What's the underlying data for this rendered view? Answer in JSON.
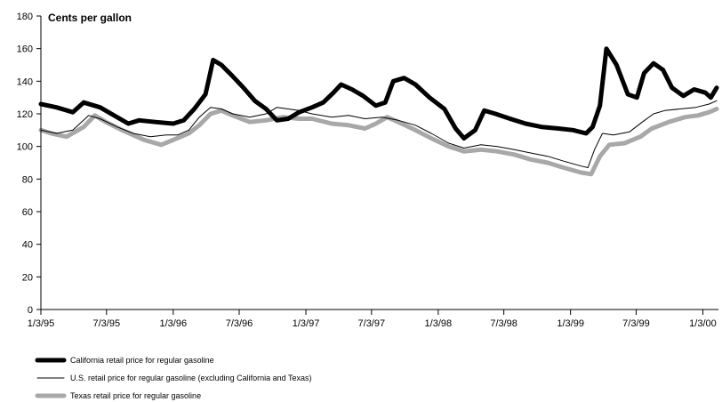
{
  "chart_data": {
    "type": "line",
    "ylabel": "Cents per gallon",
    "ylim": [
      0,
      180
    ],
    "yticks": [
      0,
      20,
      40,
      60,
      80,
      100,
      120,
      140,
      160,
      180
    ],
    "xlim": [
      "1995-01-03",
      "2000-02-15"
    ],
    "xticks": [
      {
        "date": "1995-01-03",
        "label": "1/3/95"
      },
      {
        "date": "1995-07-03",
        "label": "7/3/95"
      },
      {
        "date": "1996-01-03",
        "label": "1/3/96"
      },
      {
        "date": "1996-07-03",
        "label": "7/3/96"
      },
      {
        "date": "1997-01-03",
        "label": "1/3/97"
      },
      {
        "date": "1997-07-03",
        "label": "7/3/97"
      },
      {
        "date": "1998-01-03",
        "label": "1/3/98"
      },
      {
        "date": "1998-07-03",
        "label": "7/3/98"
      },
      {
        "date": "1999-01-03",
        "label": "1/3/99"
      },
      {
        "date": "1999-07-03",
        "label": "7/3/99"
      },
      {
        "date": "2000-01-03",
        "label": "1/3/00"
      }
    ],
    "legend_position": "bottom-left",
    "series": [
      {
        "name": "California retail price for regular gasoline",
        "color": "#000000",
        "style": "thick",
        "points": [
          [
            "1995-01-03",
            126
          ],
          [
            "1995-02-15",
            124
          ],
          [
            "1995-04-01",
            121
          ],
          [
            "1995-05-01",
            127
          ],
          [
            "1995-06-15",
            124
          ],
          [
            "1995-08-01",
            118
          ],
          [
            "1995-09-01",
            114
          ],
          [
            "1995-10-01",
            116
          ],
          [
            "1995-11-15",
            115
          ],
          [
            "1996-01-03",
            114
          ],
          [
            "1996-02-01",
            116
          ],
          [
            "1996-03-01",
            123
          ],
          [
            "1996-04-01",
            132
          ],
          [
            "1996-04-22",
            153
          ],
          [
            "1996-05-15",
            150
          ],
          [
            "1996-06-15",
            143
          ],
          [
            "1996-07-15",
            136
          ],
          [
            "1996-08-15",
            128
          ],
          [
            "1996-09-15",
            123
          ],
          [
            "1996-10-15",
            116
          ],
          [
            "1996-11-15",
            117
          ],
          [
            "1996-12-15",
            121
          ],
          [
            "1997-01-20",
            124
          ],
          [
            "1997-02-20",
            127
          ],
          [
            "1997-03-20",
            133
          ],
          [
            "1997-04-10",
            138
          ],
          [
            "1997-05-10",
            135
          ],
          [
            "1997-06-10",
            131
          ],
          [
            "1997-07-15",
            125
          ],
          [
            "1997-08-10",
            127
          ],
          [
            "1997-09-01",
            140
          ],
          [
            "1997-10-01",
            142
          ],
          [
            "1997-11-01",
            138
          ],
          [
            "1997-12-10",
            130
          ],
          [
            "1998-01-20",
            123
          ],
          [
            "1998-02-20",
            111
          ],
          [
            "1998-03-15",
            105
          ],
          [
            "1998-04-15",
            110
          ],
          [
            "1998-05-10",
            122
          ],
          [
            "1998-06-10",
            120
          ],
          [
            "1998-07-20",
            117
          ],
          [
            "1998-09-01",
            114
          ],
          [
            "1998-10-15",
            112
          ],
          [
            "1998-12-01",
            111
          ],
          [
            "1999-01-10",
            110
          ],
          [
            "1999-02-15",
            108
          ],
          [
            "1999-03-05",
            112
          ],
          [
            "1999-03-25",
            125
          ],
          [
            "1999-04-12",
            160
          ],
          [
            "1999-05-10",
            150
          ],
          [
            "1999-06-10",
            132
          ],
          [
            "1999-07-05",
            130
          ],
          [
            "1999-07-25",
            145
          ],
          [
            "1999-08-20",
            151
          ],
          [
            "1999-09-15",
            147
          ],
          [
            "1999-10-10",
            136
          ],
          [
            "1999-11-10",
            131
          ],
          [
            "1999-12-10",
            135
          ],
          [
            "2000-01-10",
            133
          ],
          [
            "2000-01-25",
            130
          ],
          [
            "2000-02-10",
            136
          ]
        ]
      },
      {
        "name": "U.S. retail price for regular gasoline (excluding California and Texas)",
        "color": "#000000",
        "style": "thin",
        "points": [
          [
            "1995-01-03",
            110
          ],
          [
            "1995-02-15",
            108
          ],
          [
            "1995-04-01",
            110
          ],
          [
            "1995-05-15",
            119
          ],
          [
            "1995-06-15",
            117
          ],
          [
            "1995-08-01",
            112
          ],
          [
            "1995-09-15",
            108
          ],
          [
            "1995-11-01",
            106
          ],
          [
            "1995-12-15",
            107
          ],
          [
            "1996-01-15",
            107
          ],
          [
            "1996-02-15",
            110
          ],
          [
            "1996-03-15",
            118
          ],
          [
            "1996-04-15",
            124
          ],
          [
            "1996-05-15",
            123
          ],
          [
            "1996-06-15",
            120
          ],
          [
            "1996-08-01",
            118
          ],
          [
            "1996-09-15",
            120
          ],
          [
            "1996-10-15",
            124
          ],
          [
            "1996-11-15",
            123
          ],
          [
            "1996-12-15",
            122
          ],
          [
            "1997-01-20",
            120
          ],
          [
            "1997-03-15",
            118
          ],
          [
            "1997-05-01",
            119
          ],
          [
            "1997-06-15",
            117
          ],
          [
            "1997-08-01",
            118
          ],
          [
            "1997-09-15",
            116
          ],
          [
            "1997-11-01",
            113
          ],
          [
            "1997-12-15",
            108
          ],
          [
            "1998-02-01",
            102
          ],
          [
            "1998-03-15",
            99
          ],
          [
            "1998-05-01",
            101
          ],
          [
            "1998-06-15",
            100
          ],
          [
            "1998-08-01",
            98
          ],
          [
            "1998-09-15",
            96
          ],
          [
            "1998-11-01",
            94
          ],
          [
            "1998-12-15",
            91
          ],
          [
            "1999-02-01",
            88
          ],
          [
            "1999-02-20",
            87
          ],
          [
            "1999-03-10",
            98
          ],
          [
            "1999-04-01",
            108
          ],
          [
            "1999-05-01",
            107
          ],
          [
            "1999-06-15",
            109
          ],
          [
            "1999-07-20",
            115
          ],
          [
            "1999-08-20",
            120
          ],
          [
            "1999-09-20",
            122
          ],
          [
            "1999-11-01",
            123
          ],
          [
            "1999-12-15",
            124
          ],
          [
            "2000-01-20",
            126
          ],
          [
            "2000-02-10",
            128
          ]
        ]
      },
      {
        "name": "Texas retail price for regular gasoline",
        "color": "#a8a8a8",
        "style": "thick",
        "points": [
          [
            "1995-01-03",
            110
          ],
          [
            "1995-02-01",
            108
          ],
          [
            "1995-03-15",
            106
          ],
          [
            "1995-05-01",
            112
          ],
          [
            "1995-06-01",
            119
          ],
          [
            "1995-07-01",
            115
          ],
          [
            "1995-08-15",
            110
          ],
          [
            "1995-10-15",
            104
          ],
          [
            "1995-12-01",
            101
          ],
          [
            "1996-01-03",
            104
          ],
          [
            "1996-02-15",
            108
          ],
          [
            "1996-03-15",
            113
          ],
          [
            "1996-04-15",
            120
          ],
          [
            "1996-05-15",
            122
          ],
          [
            "1996-06-15",
            119
          ],
          [
            "1996-08-01",
            115
          ],
          [
            "1996-09-15",
            116
          ],
          [
            "1996-11-01",
            118
          ],
          [
            "1996-12-15",
            117
          ],
          [
            "1997-01-20",
            117
          ],
          [
            "1997-03-15",
            114
          ],
          [
            "1997-05-01",
            113
          ],
          [
            "1997-06-15",
            111
          ],
          [
            "1997-07-15",
            114
          ],
          [
            "1997-08-15",
            118
          ],
          [
            "1997-09-15",
            115
          ],
          [
            "1997-11-01",
            110
          ],
          [
            "1997-12-15",
            105
          ],
          [
            "1998-02-01",
            100
          ],
          [
            "1998-03-15",
            97
          ],
          [
            "1998-05-01",
            98
          ],
          [
            "1998-06-15",
            97
          ],
          [
            "1998-08-01",
            95
          ],
          [
            "1998-09-15",
            92
          ],
          [
            "1998-11-01",
            90
          ],
          [
            "1998-12-15",
            87
          ],
          [
            "1999-02-01",
            84
          ],
          [
            "1999-03-01",
            83
          ],
          [
            "1999-03-25",
            94
          ],
          [
            "1999-04-20",
            101
          ],
          [
            "1999-06-01",
            102
          ],
          [
            "1999-07-15",
            106
          ],
          [
            "1999-08-15",
            111
          ],
          [
            "1999-10-01",
            115
          ],
          [
            "1999-11-15",
            118
          ],
          [
            "1999-12-20",
            119
          ],
          [
            "2000-01-20",
            121
          ],
          [
            "2000-02-10",
            123
          ]
        ]
      }
    ]
  }
}
